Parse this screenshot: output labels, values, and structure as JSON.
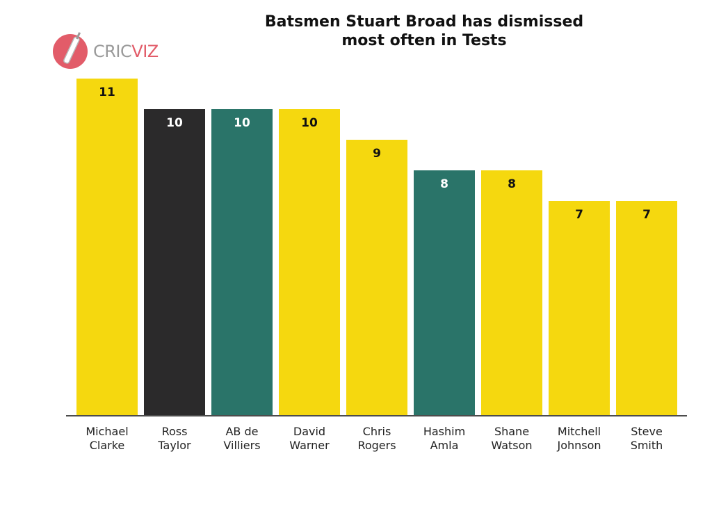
{
  "chart_data": {
    "type": "bar",
    "title_lines": [
      "Batsmen Stuart Broad has dismissed",
      "most often in Tests"
    ],
    "categories": [
      [
        "Michael",
        "Clarke"
      ],
      [
        "Ross",
        "Taylor"
      ],
      [
        "AB de",
        "Villiers"
      ],
      [
        "David",
        "Warner"
      ],
      [
        "Chris",
        "Rogers"
      ],
      [
        "Hashim",
        "Amla"
      ],
      [
        "Shane",
        "Watson"
      ],
      [
        "Mitchell",
        "Johnson"
      ],
      [
        "Steve",
        "Smith"
      ]
    ],
    "values": [
      11,
      10,
      10,
      10,
      9,
      8,
      8,
      7,
      7
    ],
    "bar_colors": [
      "#f5d80f",
      "#2b2a2b",
      "#2a7469",
      "#f5d80f",
      "#f5d80f",
      "#2a7469",
      "#f5d80f",
      "#f5d80f",
      "#f5d80f"
    ],
    "label_colors": [
      "#111111",
      "#ffffff",
      "#ffffff",
      "#111111",
      "#111111",
      "#ffffff",
      "#111111",
      "#111111",
      "#111111"
    ],
    "ylim": [
      0,
      11
    ],
    "grid": false,
    "legend": "none"
  },
  "logo": {
    "text_a": "CRIC",
    "text_b": "VIZ",
    "icon": "cricket-bat-ball-icon",
    "color": "#e25c69"
  }
}
